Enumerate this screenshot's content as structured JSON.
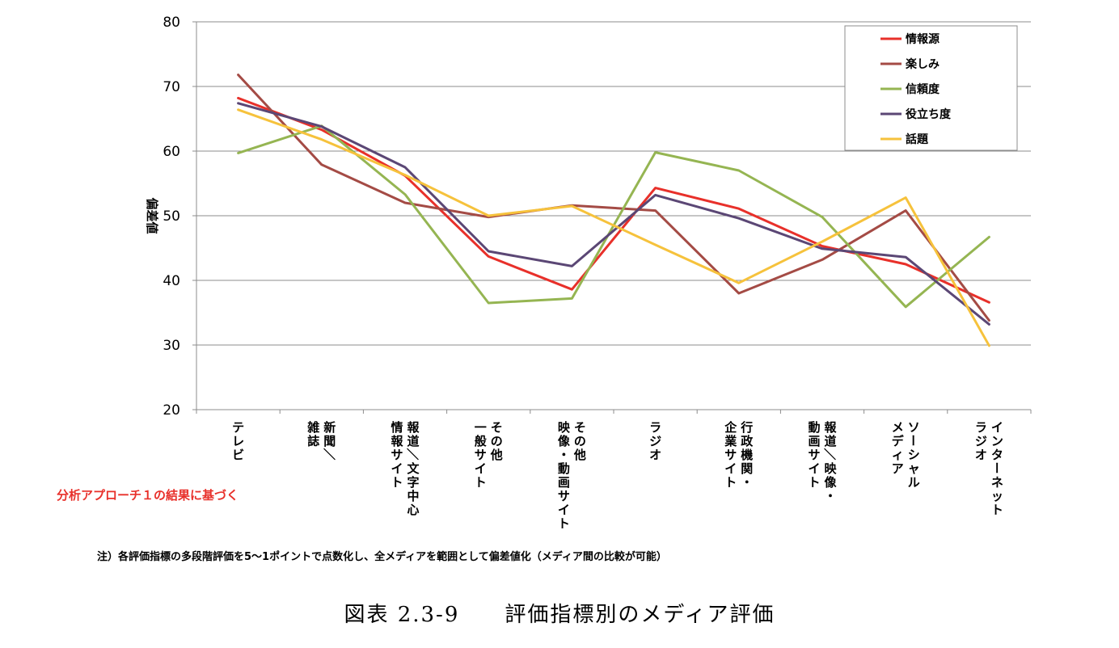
{
  "chart_data": {
    "type": "line",
    "title": "",
    "xlabel": "",
    "ylabel": "偏差値",
    "ylim": [
      20,
      80
    ],
    "yticks": [
      20,
      30,
      40,
      50,
      60,
      70,
      80
    ],
    "grid": true,
    "legend_position": "top-right",
    "categories": [
      "テレビ",
      "新聞／雑誌",
      "報道／文字中心情報サイト",
      "その他一般サイト",
      "その他映像・動画サイト",
      "ラジオ",
      "行政機関・企業サイト",
      "報道／映像・動画サイト",
      "ソーシャルメディア",
      "インターネットラジオ"
    ],
    "category_label_columns": [
      [
        "テレビ"
      ],
      [
        "新聞／",
        "雑誌"
      ],
      [
        "報道／文字中心",
        "情報サイト"
      ],
      [
        "その他",
        "一般サイト"
      ],
      [
        "その他",
        "映像・動画サイト"
      ],
      [
        "ラジオ"
      ],
      [
        "行政機関・",
        "企業サイト"
      ],
      [
        "報道／映像・",
        "動画サイト"
      ],
      [
        "ソーシャル",
        "メディア"
      ],
      [
        "インターネット",
        "ラジオ"
      ]
    ],
    "series": [
      {
        "name": "情報源",
        "color": "#e8302a",
        "values": [
          68.2,
          63.3,
          56.2,
          43.7,
          38.6,
          54.3,
          51.1,
          45.3,
          42.5,
          36.6
        ]
      },
      {
        "name": "楽しみ",
        "color": "#a44b45",
        "values": [
          71.8,
          57.9,
          52.0,
          49.8,
          51.6,
          50.8,
          38.0,
          43.2,
          50.8,
          33.8
        ]
      },
      {
        "name": "信頼度",
        "color": "#95b552",
        "values": [
          59.7,
          63.9,
          53.3,
          36.5,
          37.2,
          59.8,
          57.0,
          49.8,
          35.9,
          46.7
        ]
      },
      {
        "name": "役立ち度",
        "color": "#5b4775",
        "values": [
          67.4,
          63.8,
          57.5,
          44.5,
          42.2,
          53.2,
          49.6,
          44.9,
          43.6,
          33.2
        ]
      },
      {
        "name": "話題",
        "color": "#f6c23c",
        "values": [
          66.4,
          61.8,
          56.3,
          50.0,
          51.5,
          45.5,
          39.6,
          46.0,
          52.8,
          29.9
        ]
      }
    ]
  },
  "annotation": "分析アプローチ１の結果に基づく",
  "footnote": "注）各評価指標の多段階評価を5～1ポイントで点数化し、全メディアを範囲として偏差値化（メディア間の比較が可能）",
  "figure_caption": "図表 2.3-9　　評価指標別のメディア評価"
}
